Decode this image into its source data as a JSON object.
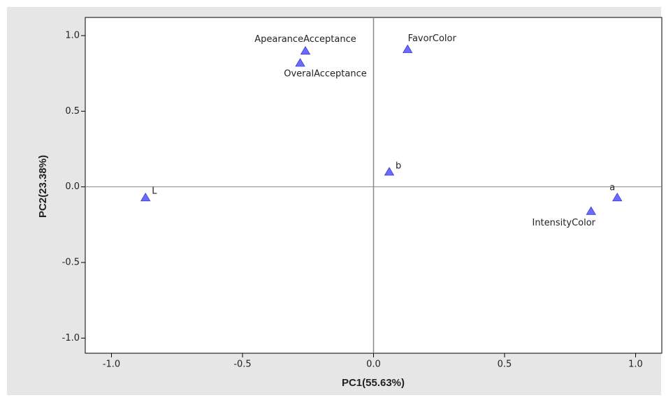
{
  "chart_data": {
    "type": "scatter",
    "xlabel": "PC1(55.63%)",
    "ylabel": "PC2(23.38%)",
    "point_labels": [
      "ApearanceAcceptance",
      "OveralAcceptance",
      "FavorColor",
      "b",
      "L",
      "a",
      "IntensityColor"
    ],
    "x": [
      -0.26,
      -0.28,
      0.13,
      0.06,
      -0.87,
      0.93,
      0.83
    ],
    "values": [
      0.9,
      0.82,
      0.91,
      0.1,
      -0.07,
      -0.07,
      -0.16
    ],
    "color": "#6b6bff",
    "xlim": [
      -1.1,
      1.1
    ],
    "ylim": [
      -1.1,
      1.12
    ],
    "xticks": [
      {
        "value": -1,
        "label": "-1.0"
      },
      {
        "value": -0.5,
        "label": "-0.5"
      },
      {
        "value": 0,
        "label": "0.0"
      },
      {
        "value": 0.5,
        "label": "0.5"
      },
      {
        "value": 1,
        "label": "1.0"
      }
    ],
    "yticks": [
      {
        "value": -1,
        "label": "-1.0"
      },
      {
        "value": -0.5,
        "label": "-0.5"
      },
      {
        "value": 0,
        "label": "0.0"
      },
      {
        "value": 0.5,
        "label": "0.5"
      },
      {
        "value": 1,
        "label": "1.0"
      }
    ],
    "reference_lines": [
      0,
      0
    ]
  }
}
